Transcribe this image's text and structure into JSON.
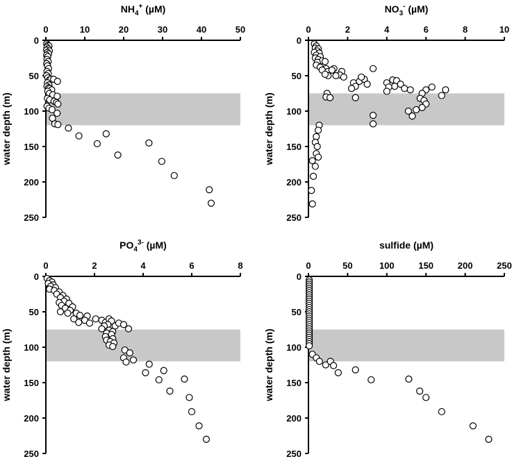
{
  "chart_data": [
    {
      "type": "scatter",
      "id": "nh4",
      "title": {
        "main": "NH",
        "sub": "4",
        "sup": "+",
        "units": " (µM)"
      },
      "ylabel": "water depth (m)",
      "xlim": [
        0,
        50
      ],
      "xticks": [
        0,
        10,
        20,
        30,
        40,
        50
      ],
      "ylim": [
        0,
        250
      ],
      "yticks": [
        0,
        50,
        100,
        150,
        200,
        250
      ],
      "shaded_band_depth": [
        75,
        120
      ],
      "points": [
        [
          0.2,
          5
        ],
        [
          0.5,
          7
        ],
        [
          0.8,
          8
        ],
        [
          0.3,
          10
        ],
        [
          0.6,
          12
        ],
        [
          0.2,
          14
        ],
        [
          0.9,
          15
        ],
        [
          0.4,
          17
        ],
        [
          0.7,
          19
        ],
        [
          0.2,
          21
        ],
        [
          0.5,
          23
        ],
        [
          0.3,
          27
        ],
        [
          0.6,
          30
        ],
        [
          0.2,
          33
        ],
        [
          0.4,
          36
        ],
        [
          0.7,
          40
        ],
        [
          0.3,
          44
        ],
        [
          0.6,
          47
        ],
        [
          0.2,
          50
        ],
        [
          0.5,
          53
        ],
        [
          0.9,
          56
        ],
        [
          1.3,
          55
        ],
        [
          2.0,
          55
        ],
        [
          3.0,
          58
        ],
        [
          0.4,
          60
        ],
        [
          0.8,
          63
        ],
        [
          0.3,
          65
        ],
        [
          0.7,
          67
        ],
        [
          1.0,
          68
        ],
        [
          1.5,
          70
        ],
        [
          0.5,
          72
        ],
        [
          0.9,
          75
        ],
        [
          1.8,
          77
        ],
        [
          2.9,
          79
        ],
        [
          0.4,
          82
        ],
        [
          1.0,
          84
        ],
        [
          2.1,
          86
        ],
        [
          2.7,
          88
        ],
        [
          3.1,
          90
        ],
        [
          0.3,
          93
        ],
        [
          0.8,
          96
        ],
        [
          1.6,
          98
        ],
        [
          2.9,
          103
        ],
        [
          1.7,
          110
        ],
        [
          2.3,
          118
        ],
        [
          3.1,
          119
        ],
        [
          5.8,
          124
        ],
        [
          8.5,
          135
        ],
        [
          15.5,
          132
        ],
        [
          13.2,
          146
        ],
        [
          26.5,
          145
        ],
        [
          18.5,
          162
        ],
        [
          29.8,
          171
        ],
        [
          33.0,
          191
        ],
        [
          42.0,
          211
        ],
        [
          42.5,
          230
        ]
      ]
    },
    {
      "type": "scatter",
      "id": "no3",
      "title": {
        "main": "NO",
        "sub": "3",
        "sup": "-",
        "units": " (µM)"
      },
      "ylabel": "water depth (m)",
      "xlim": [
        0,
        10
      ],
      "xticks": [
        0,
        2,
        4,
        6,
        8,
        10
      ],
      "ylim": [
        0,
        250
      ],
      "yticks": [
        0,
        50,
        100,
        150,
        200,
        250
      ],
      "shaded_band_depth": [
        75,
        120
      ],
      "points": [
        [
          0.3,
          5
        ],
        [
          0.4,
          8
        ],
        [
          0.35,
          11
        ],
        [
          0.5,
          12
        ],
        [
          0.45,
          15
        ],
        [
          0.3,
          17
        ],
        [
          0.55,
          18
        ],
        [
          0.4,
          21
        ],
        [
          0.6,
          23
        ],
        [
          0.35,
          25
        ],
        [
          0.5,
          27
        ],
        [
          0.7,
          29
        ],
        [
          0.45,
          31
        ],
        [
          0.85,
          30
        ],
        [
          0.4,
          35
        ],
        [
          0.6,
          38
        ],
        [
          0.9,
          40
        ],
        [
          0.7,
          42
        ],
        [
          1.0,
          44
        ],
        [
          1.3,
          40
        ],
        [
          1.2,
          42
        ],
        [
          1.7,
          44
        ],
        [
          1.6,
          49
        ],
        [
          1.8,
          52
        ],
        [
          1.0,
          50
        ],
        [
          0.85,
          48
        ],
        [
          1.4,
          50
        ],
        [
          2.3,
          60
        ],
        [
          2.6,
          58
        ],
        [
          2.85,
          55
        ],
        [
          2.7,
          52
        ],
        [
          3.0,
          62
        ],
        [
          3.3,
          40
        ],
        [
          2.4,
          65
        ],
        [
          2.2,
          68
        ],
        [
          4.0,
          60
        ],
        [
          4.3,
          56
        ],
        [
          4.5,
          57
        ],
        [
          4.7,
          62
        ],
        [
          4.4,
          65
        ],
        [
          4.1,
          66
        ],
        [
          4.0,
          72
        ],
        [
          4.9,
          68
        ],
        [
          5.2,
          70
        ],
        [
          6.3,
          66
        ],
        [
          6.0,
          70
        ],
        [
          5.8,
          75
        ],
        [
          7.0,
          70
        ],
        [
          6.8,
          78
        ],
        [
          5.7,
          82
        ],
        [
          5.9,
          85
        ],
        [
          6.0,
          90
        ],
        [
          5.8,
          95
        ],
        [
          5.5,
          98
        ],
        [
          5.1,
          100
        ],
        [
          5.3,
          107
        ],
        [
          3.3,
          106
        ],
        [
          3.3,
          118
        ],
        [
          0.55,
          120
        ],
        [
          0.5,
          127
        ],
        [
          0.4,
          136
        ],
        [
          0.35,
          144
        ],
        [
          0.45,
          150
        ],
        [
          0.4,
          160
        ],
        [
          0.5,
          165
        ],
        [
          0.2,
          170
        ],
        [
          0.35,
          178
        ],
        [
          0.25,
          192
        ],
        [
          0.15,
          212
        ],
        [
          0.2,
          231
        ],
        [
          0.95,
          75
        ],
        [
          0.9,
          80
        ],
        [
          1.1,
          81
        ],
        [
          2.4,
          81
        ]
      ]
    },
    {
      "type": "scatter",
      "id": "po4",
      "title": {
        "main": "PO",
        "sub": "4",
        "sup": "3-",
        "units": " (µM)"
      },
      "ylabel": "water depth (m)",
      "xlim": [
        0,
        8
      ],
      "xticks": [
        0,
        2,
        4,
        6,
        8
      ],
      "ylim": [
        0,
        250
      ],
      "yticks": [
        0,
        50,
        100,
        150,
        200,
        250
      ],
      "shaded_band_depth": [
        75,
        120
      ],
      "points": [
        [
          0.05,
          3
        ],
        [
          0.15,
          6
        ],
        [
          0.25,
          8
        ],
        [
          0.1,
          10
        ],
        [
          0.3,
          12
        ],
        [
          0.2,
          14
        ],
        [
          0.4,
          16
        ],
        [
          0.15,
          18
        ],
        [
          0.35,
          20
        ],
        [
          0.55,
          22
        ],
        [
          0.45,
          25
        ],
        [
          0.7,
          27
        ],
        [
          0.6,
          30
        ],
        [
          0.85,
          32
        ],
        [
          0.75,
          35
        ],
        [
          0.55,
          37
        ],
        [
          0.95,
          38
        ],
        [
          0.65,
          41
        ],
        [
          1.1,
          43
        ],
        [
          0.8,
          45
        ],
        [
          1.0,
          48
        ],
        [
          0.6,
          50
        ],
        [
          0.9,
          52
        ],
        [
          1.25,
          52
        ],
        [
          1.4,
          55
        ],
        [
          1.7,
          56
        ],
        [
          1.15,
          60
        ],
        [
          1.6,
          62
        ],
        [
          1.35,
          65
        ],
        [
          1.8,
          66
        ],
        [
          2.05,
          60
        ],
        [
          2.3,
          62
        ],
        [
          2.45,
          65
        ],
        [
          2.6,
          60
        ],
        [
          2.7,
          63
        ],
        [
          2.55,
          68
        ],
        [
          2.4,
          70
        ],
        [
          2.85,
          70
        ],
        [
          3.0,
          66
        ],
        [
          3.2,
          68
        ],
        [
          3.4,
          74
        ],
        [
          2.3,
          74
        ],
        [
          2.6,
          76
        ],
        [
          2.75,
          78
        ],
        [
          2.5,
          80
        ],
        [
          2.7,
          82
        ],
        [
          2.45,
          85
        ],
        [
          2.75,
          88
        ],
        [
          2.5,
          90
        ],
        [
          2.65,
          92
        ],
        [
          2.8,
          94
        ],
        [
          2.6,
          97
        ],
        [
          2.75,
          99
        ],
        [
          3.25,
          104
        ],
        [
          3.45,
          108
        ],
        [
          3.2,
          115
        ],
        [
          3.6,
          118
        ],
        [
          3.3,
          121
        ],
        [
          4.25,
          124
        ],
        [
          4.85,
          133
        ],
        [
          4.1,
          136
        ],
        [
          4.65,
          146
        ],
        [
          5.7,
          145
        ],
        [
          5.1,
          162
        ],
        [
          5.9,
          171
        ],
        [
          6.0,
          191
        ],
        [
          6.3,
          211
        ],
        [
          6.6,
          230
        ]
      ]
    },
    {
      "type": "scatter",
      "id": "sulfide",
      "title": {
        "main": "sulfide",
        "sub": "",
        "sup": "",
        "units": " (µM)"
      },
      "ylabel": "water depth (m)",
      "xlim": [
        0,
        250
      ],
      "xticks": [
        0,
        50,
        100,
        150,
        200,
        250
      ],
      "ylim": [
        0,
        250
      ],
      "yticks": [
        0,
        50,
        100,
        150,
        200,
        250
      ],
      "shaded_band_depth": [
        75,
        120
      ],
      "points": [
        [
          1,
          5
        ],
        [
          1,
          8
        ],
        [
          1,
          11
        ],
        [
          1,
          14
        ],
        [
          1,
          17
        ],
        [
          1,
          20
        ],
        [
          1,
          23
        ],
        [
          1,
          26
        ],
        [
          1,
          29
        ],
        [
          1,
          32
        ],
        [
          1,
          35
        ],
        [
          1,
          38
        ],
        [
          1,
          41
        ],
        [
          1,
          44
        ],
        [
          1,
          47
        ],
        [
          1,
          50
        ],
        [
          1,
          53
        ],
        [
          1,
          56
        ],
        [
          1,
          59
        ],
        [
          1,
          62
        ],
        [
          1,
          65
        ],
        [
          1,
          68
        ],
        [
          1,
          71
        ],
        [
          1,
          74
        ],
        [
          1,
          77
        ],
        [
          1,
          80
        ],
        [
          1,
          83
        ],
        [
          1,
          86
        ],
        [
          1,
          89
        ],
        [
          1,
          92
        ],
        [
          1,
          95
        ],
        [
          1,
          98
        ],
        [
          5,
          110
        ],
        [
          10,
          115
        ],
        [
          14,
          120
        ],
        [
          22,
          125
        ],
        [
          28,
          120
        ],
        [
          32,
          126
        ],
        [
          38,
          136
        ],
        [
          60,
          132
        ],
        [
          80,
          146
        ],
        [
          128,
          145
        ],
        [
          142,
          162
        ],
        [
          150,
          171
        ],
        [
          170,
          191
        ],
        [
          210,
          211
        ],
        [
          230,
          230
        ]
      ]
    }
  ]
}
